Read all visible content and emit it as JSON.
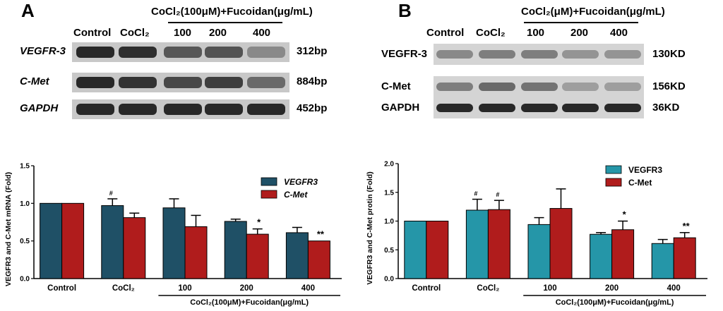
{
  "panel_a": {
    "letter": "A",
    "treatment_header": "CoCl₂(100μM)+Fucoidan(μg/mL)",
    "lanes": [
      "Control",
      "CoCl₂",
      "100",
      "200",
      "400"
    ],
    "rows": [
      {
        "label": "VEGFR-3",
        "size": "312bp",
        "intensity": [
          1.0,
          0.97,
          0.78,
          0.8,
          0.55
        ]
      },
      {
        "label": "C-Met",
        "size": "884bp",
        "intensity": [
          1.0,
          0.95,
          0.85,
          0.9,
          0.7
        ]
      },
      {
        "label": "GAPDH",
        "size": "452bp",
        "intensity": [
          1.0,
          1.0,
          1.0,
          1.0,
          1.0
        ]
      }
    ]
  },
  "panel_b": {
    "letter": "B",
    "treatment_header": "CoCl₂(μM)+Fucoidan(μg/mL)",
    "lanes": [
      "Control",
      "CoCl₂",
      "100",
      "200",
      "400"
    ],
    "rows": [
      {
        "label": "VEGFR-3",
        "size": "130KD",
        "intensity": [
          0.55,
          0.6,
          0.6,
          0.5,
          0.5
        ]
      },
      {
        "label": "C-Met",
        "size": "156KD",
        "intensity": [
          0.6,
          0.7,
          0.65,
          0.45,
          0.45
        ]
      },
      {
        "label": "GAPDH",
        "size": "36KD",
        "intensity": [
          1.0,
          1.0,
          1.0,
          1.0,
          1.0
        ]
      }
    ]
  },
  "colors": {
    "vegfr3_a": "#1f5066",
    "cmet": "#b01c1c",
    "vegfr3_b": "#2596a8"
  },
  "chart_data": [
    {
      "type": "bar",
      "title": "",
      "ylabel": "VEGFR3 and C-Met mRNA (Fold)",
      "xlabel": "CoCl₂(100μM)+Fucoidan(μg/mL)",
      "categories": [
        "Control",
        "CoCl₂",
        "100",
        "200",
        "400"
      ],
      "ylim": [
        0,
        1.5
      ],
      "yticks": [
        "0.0",
        "0.5",
        "1.0",
        "1.5"
      ],
      "series": [
        {
          "name": "VEGFR3",
          "values": [
            1.0,
            0.97,
            0.94,
            0.76,
            0.61
          ],
          "errors": [
            0,
            0.09,
            0.12,
            0.03,
            0.07
          ],
          "sig": [
            "",
            "#",
            "",
            "",
            ""
          ]
        },
        {
          "name": "C-Met",
          "values": [
            1.0,
            0.81,
            0.69,
            0.59,
            0.5
          ],
          "errors": [
            0,
            0.06,
            0.15,
            0.07,
            0
          ],
          "sig": [
            "",
            "",
            "",
            "*",
            "**"
          ]
        }
      ],
      "legend": "top-right"
    },
    {
      "type": "bar",
      "title": "",
      "ylabel": "VEGFR3 and C-Met protin (Fold)",
      "xlabel": "CoCl₂(100μM)+Fucoidan(μg/mL)",
      "categories": [
        "Control",
        "CoCl₂",
        "100",
        "200",
        "400"
      ],
      "ylim": [
        0,
        2.0
      ],
      "yticks": [
        "0.0",
        "0.5",
        "1.0",
        "1.5",
        "2.0"
      ],
      "series": [
        {
          "name": "VEGFR3",
          "values": [
            1.0,
            1.19,
            0.94,
            0.77,
            0.61
          ],
          "errors": [
            0,
            0.19,
            0.12,
            0.03,
            0.07
          ],
          "sig": [
            "",
            "#",
            "",
            "",
            ""
          ]
        },
        {
          "name": "C-Met",
          "values": [
            1.0,
            1.2,
            1.22,
            0.85,
            0.71
          ],
          "errors": [
            0,
            0.16,
            0.34,
            0.15,
            0.09
          ],
          "sig": [
            "",
            "#",
            "",
            "*",
            "**"
          ]
        }
      ],
      "legend": "top-right"
    }
  ]
}
